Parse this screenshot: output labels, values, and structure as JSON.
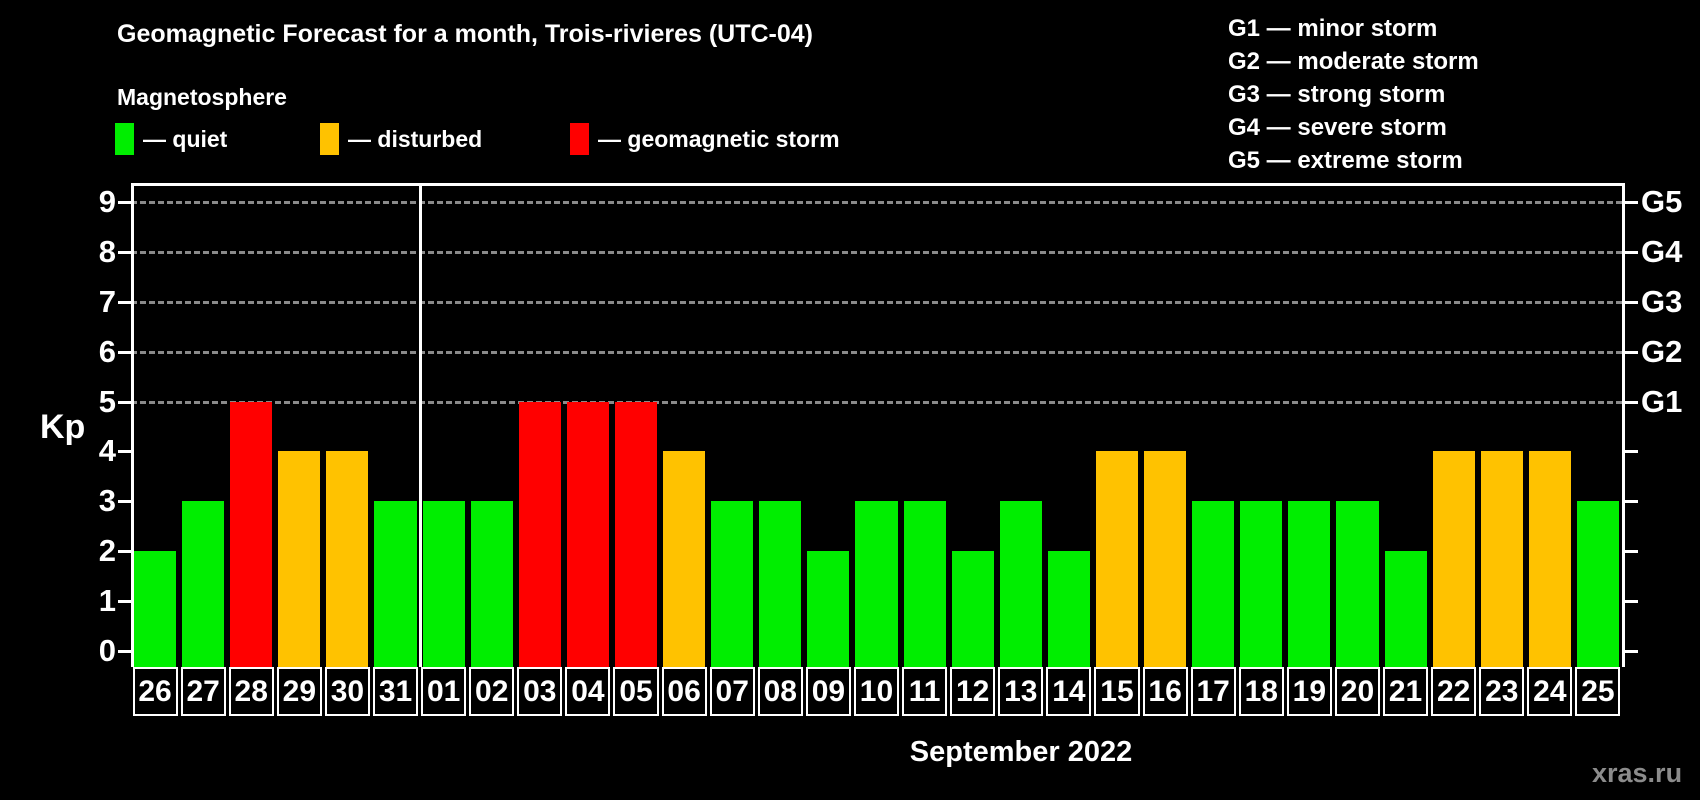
{
  "title": "Geomagnetic Forecast for a month, Trois-rivieres (UTC-04)",
  "legend": {
    "title": "Magnetosphere",
    "items": [
      {
        "name": "quiet",
        "label": "— quiet",
        "color": "#00ee00"
      },
      {
        "name": "disturbed",
        "label": "— disturbed",
        "color": "#ffc200"
      },
      {
        "name": "storm",
        "label": "— geomagnetic storm",
        "color": "#ff0000"
      }
    ]
  },
  "g_legend": [
    "G1 — minor storm",
    "G2 — moderate storm",
    "G3 — strong storm",
    "G4 — severe storm",
    "G5 — extreme storm"
  ],
  "axis": {
    "y_title": "Kp",
    "y_ticks": [
      0,
      1,
      2,
      3,
      4,
      5,
      6,
      7,
      8,
      9
    ],
    "g_labels": [
      {
        "kp": 5,
        "label": "G1"
      },
      {
        "kp": 6,
        "label": "G2"
      },
      {
        "kp": 7,
        "label": "G3"
      },
      {
        "kp": 8,
        "label": "G4"
      },
      {
        "kp": 9,
        "label": "G5"
      }
    ]
  },
  "x_title": "September 2022",
  "watermark": "xras.ru",
  "chart_data": {
    "type": "bar",
    "title": "Geomagnetic Forecast for a month, Trois-rivieres (UTC-04)",
    "categories": [
      "26",
      "27",
      "28",
      "29",
      "30",
      "31",
      "01",
      "02",
      "03",
      "04",
      "05",
      "06",
      "07",
      "08",
      "09",
      "10",
      "11",
      "12",
      "13",
      "14",
      "15",
      "16",
      "17",
      "18",
      "19",
      "20",
      "21",
      "22",
      "23",
      "24",
      "25"
    ],
    "values": [
      2,
      3,
      5,
      4,
      4,
      3,
      3,
      3,
      5,
      5,
      5,
      4,
      3,
      3,
      2,
      3,
      3,
      2,
      3,
      2,
      4,
      4,
      3,
      3,
      3,
      3,
      2,
      4,
      4,
      4,
      3
    ],
    "states": [
      "quiet",
      "quiet",
      "storm",
      "disturbed",
      "disturbed",
      "quiet",
      "quiet",
      "quiet",
      "storm",
      "storm",
      "storm",
      "disturbed",
      "quiet",
      "quiet",
      "quiet",
      "quiet",
      "quiet",
      "quiet",
      "quiet",
      "quiet",
      "disturbed",
      "disturbed",
      "quiet",
      "quiet",
      "quiet",
      "quiet",
      "quiet",
      "disturbed",
      "disturbed",
      "disturbed",
      "quiet"
    ],
    "state_colors": {
      "quiet": "#00ee00",
      "disturbed": "#ffc200",
      "storm": "#ff0000"
    },
    "xlabel": "September 2022",
    "ylabel": "Kp",
    "ylim": [
      0,
      9
    ],
    "dashed_gridlines_at_kp": [
      5,
      6,
      7,
      8,
      9
    ],
    "month_separator_after_index": 5,
    "grid_color": "#8a8a8a",
    "legend_position": "top"
  }
}
